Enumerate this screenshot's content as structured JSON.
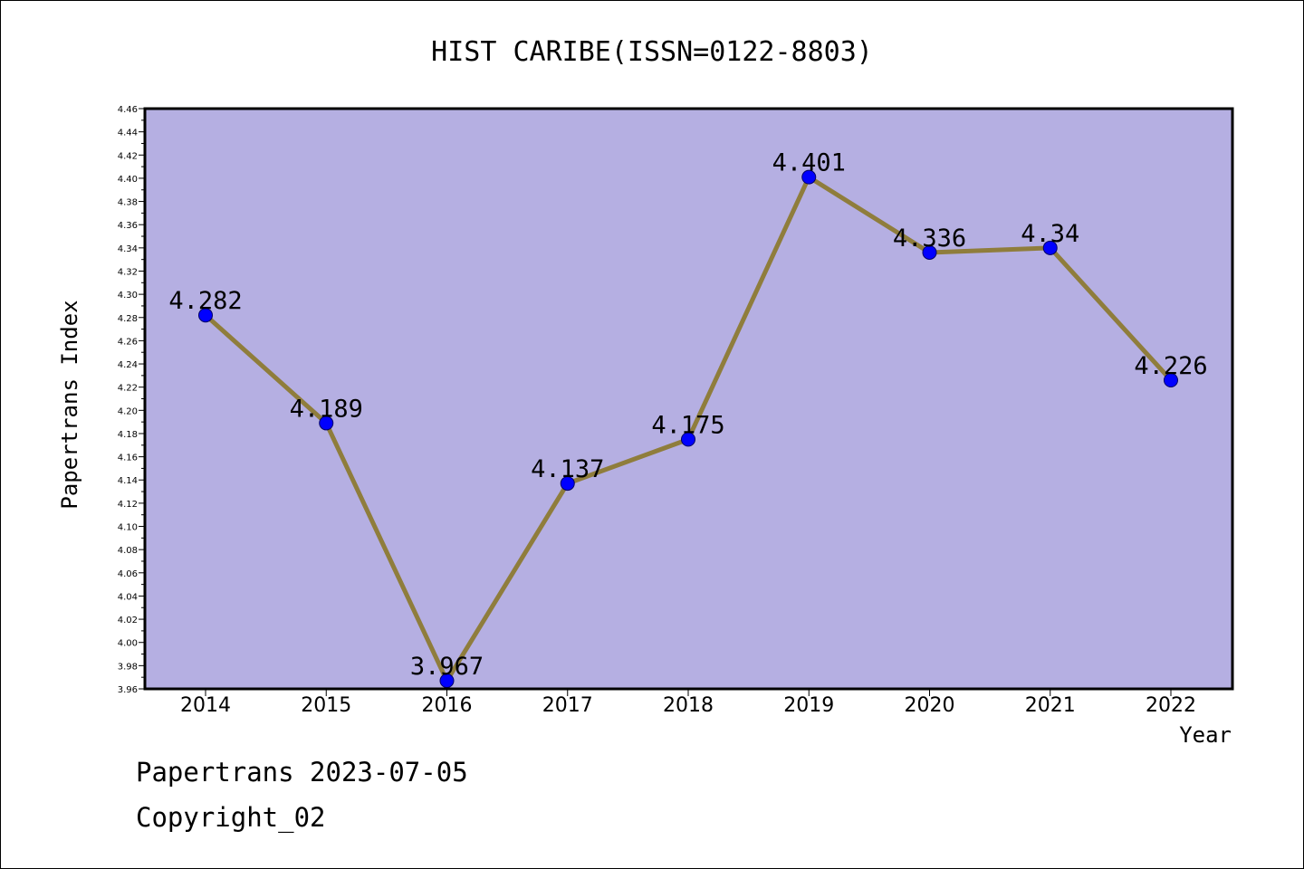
{
  "chart_data": {
    "type": "line",
    "title": "HIST CARIBE(ISSN=0122-8803)",
    "xlabel": "Year",
    "ylabel": "Papertrans Index",
    "categories": [
      "2014",
      "2015",
      "2016",
      "2017",
      "2018",
      "2019",
      "2020",
      "2021",
      "2022"
    ],
    "values": [
      4.282,
      4.189,
      3.967,
      4.137,
      4.175,
      4.401,
      4.336,
      4.34,
      4.226
    ],
    "data_labels": [
      "4.282",
      "4.189",
      "3.967",
      "4.137",
      "4.175",
      "4.401",
      "4.336",
      "4.34",
      "4.226"
    ],
    "ylim": [
      3.96,
      4.46
    ],
    "ytick_step": 0.02,
    "grid": false,
    "legend": "none",
    "colors": {
      "plot_background": "#b5afe2",
      "line": "#8f7d3c",
      "marker": "#0000ff",
      "marker_edge": "#000066"
    }
  },
  "footer": {
    "line1": "Papertrans 2023-07-05",
    "line2": "Copyright_02"
  }
}
